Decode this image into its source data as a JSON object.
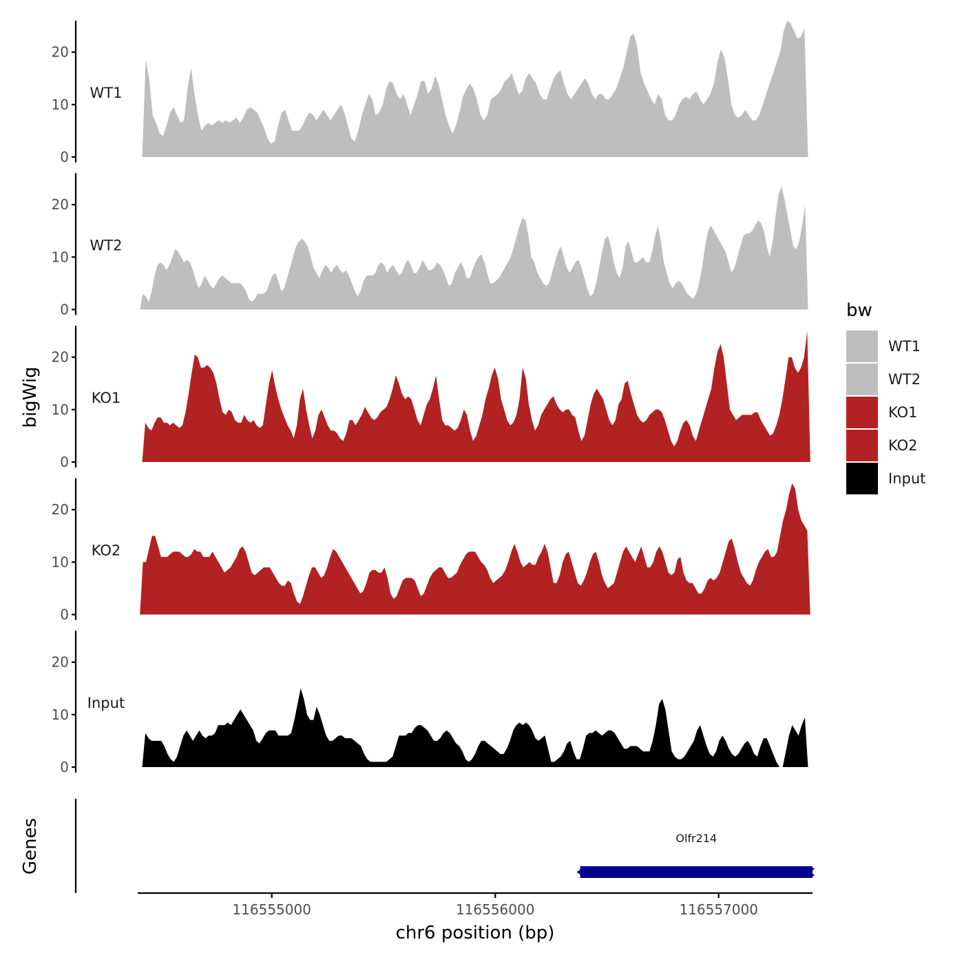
{
  "chart_data": {
    "type": "area",
    "ylabel": "bigWig",
    "xlabel": "chr6 position (bp)",
    "xlim": [
      116554400,
      116557420
    ],
    "ylim": [
      0,
      26
    ],
    "y_ticks": [
      0,
      10,
      20
    ],
    "x_ticks": [
      116555000,
      116556000,
      116557000
    ],
    "x_tick_labels": [
      "116555000",
      "116556000",
      "116557000"
    ],
    "legend": {
      "title": "bw",
      "position": "right",
      "entries": [
        {
          "label": "WT1",
          "color": "#bebebe"
        },
        {
          "label": "WT2",
          "color": "#bebebe"
        },
        {
          "label": "KO1",
          "color": "#b22222"
        },
        {
          "label": "KO2",
          "color": "#b22222"
        },
        {
          "label": "Input",
          "color": "#000000"
        }
      ]
    },
    "series": [
      {
        "name": "WT1",
        "color": "#bebebe",
        "x_start": 116554420,
        "x_end": 116557400,
        "values": [
          0,
          18.5,
          15,
          8,
          6.5,
          4.5,
          4,
          6,
          8.5,
          9.5,
          8,
          6.5,
          7,
          13,
          17,
          12,
          8,
          5,
          6,
          6.5,
          6,
          6.5,
          7,
          6.5,
          7,
          6.5,
          7,
          7.5,
          6.5,
          7.5,
          9,
          9.5,
          9,
          8.5,
          7,
          5.5,
          3.5,
          2.5,
          3,
          6,
          8.5,
          9,
          7,
          5,
          5,
          5,
          6,
          7.5,
          8.5,
          8,
          7,
          8,
          9,
          8,
          7,
          8,
          9,
          10,
          8.5,
          6,
          3.5,
          3,
          5,
          8,
          10,
          12,
          11,
          8,
          8.5,
          10,
          13,
          14.5,
          14,
          12,
          11,
          12,
          10,
          8,
          10,
          12,
          14.5,
          14.5,
          12,
          13,
          15.5,
          14,
          11,
          8,
          6,
          4.5,
          6,
          8.5,
          11.5,
          13,
          14,
          13,
          11,
          8,
          7,
          8,
          11,
          11.5,
          12,
          13,
          14.5,
          15,
          16,
          14,
          12,
          12.5,
          15,
          16,
          15,
          14,
          12,
          11,
          11,
          13,
          15,
          16,
          16.5,
          14,
          12,
          11,
          12,
          13,
          14,
          15,
          14,
          12,
          11,
          12,
          12,
          11,
          11,
          12,
          13,
          15,
          17,
          20,
          23,
          23.5,
          21,
          16,
          14,
          12.5,
          11,
          10,
          12,
          11,
          8,
          7,
          7,
          8,
          10,
          11,
          11.5,
          11,
          12,
          12.5,
          11,
          10,
          11,
          12,
          14,
          18,
          20.5,
          19,
          15,
          10,
          8,
          7.5,
          8,
          9,
          8,
          7,
          7,
          8,
          10,
          12,
          14,
          16,
          18,
          20,
          24,
          26,
          25.5,
          24,
          22.5,
          23,
          24.5,
          0
        ]
      },
      {
        "name": "WT2",
        "color": "#bebebe",
        "x_start": 116554410,
        "x_end": 116557400,
        "values": [
          0,
          3,
          2.5,
          1.5,
          3.5,
          6.5,
          8.5,
          9,
          8.5,
          7.5,
          8.5,
          10,
          11.5,
          11,
          10,
          9,
          9.5,
          9,
          7.5,
          5.5,
          4,
          5,
          6.5,
          5.5,
          4.5,
          4,
          5,
          6,
          6.5,
          6,
          5.5,
          5,
          5,
          5,
          5,
          4.5,
          3.5,
          2,
          1.5,
          2,
          3,
          3,
          3,
          3.5,
          5,
          6.5,
          7,
          5.5,
          3.5,
          4,
          6,
          8,
          10,
          12,
          13,
          13.5,
          13,
          12,
          10,
          8,
          7,
          6,
          7.5,
          8.5,
          8,
          7,
          8,
          8.5,
          7.5,
          7,
          7.5,
          6.5,
          5,
          3.5,
          2.5,
          3.5,
          5.5,
          6.5,
          6.5,
          6.5,
          7,
          8.5,
          9,
          8.5,
          7,
          8,
          8.5,
          7.5,
          6.5,
          7,
          8.5,
          9.5,
          8.5,
          7,
          7,
          8,
          9.5,
          8.5,
          7.5,
          7.5,
          8,
          9,
          8.5,
          7.5,
          6,
          4.5,
          5,
          7,
          8,
          9,
          8,
          6,
          6,
          7.5,
          9,
          10,
          10.5,
          9,
          7,
          5,
          5,
          5.5,
          6,
          7,
          8,
          9,
          10,
          12,
          14,
          16,
          17.5,
          17,
          14,
          10,
          9,
          7,
          6,
          5,
          4.5,
          5,
          7,
          9,
          11,
          12,
          10,
          8,
          7,
          8,
          9,
          9.5,
          8,
          6,
          4,
          2.5,
          3,
          5,
          8,
          11,
          13.5,
          14,
          12,
          9,
          7,
          6,
          8,
          12,
          13,
          11,
          9,
          9,
          9.5,
          10,
          9,
          9,
          11,
          14,
          16,
          13,
          9,
          7,
          5,
          4,
          5,
          5.5,
          5,
          4,
          3,
          2.5,
          2,
          3,
          5,
          8,
          12,
          15,
          16,
          15,
          14,
          13,
          12,
          11,
          9,
          7,
          8,
          10,
          12,
          14,
          14.5,
          14.5,
          15,
          16,
          17,
          16.5,
          15,
          12,
          10,
          13,
          18,
          22,
          23.5,
          21,
          18,
          15,
          12,
          11.5,
          13,
          16,
          20,
          0
        ]
      },
      {
        "name": "KO1",
        "color": "#b22222",
        "x_start": 116554420,
        "x_end": 116557410,
        "values": [
          0,
          7.5,
          6.5,
          6,
          7.5,
          8.5,
          8.5,
          7.5,
          7.5,
          7,
          7.5,
          7,
          6.5,
          7,
          9.5,
          13,
          17,
          20.5,
          20,
          18,
          18,
          18.5,
          18,
          17,
          15,
          12,
          9.5,
          9,
          10,
          9.5,
          8,
          7.5,
          7.5,
          9,
          8,
          7.5,
          8,
          7,
          6.5,
          7,
          11,
          15,
          17.5,
          14.5,
          12,
          10,
          8.5,
          7,
          6,
          4.5,
          7,
          12,
          14,
          10,
          7,
          4.5,
          6,
          9,
          10,
          8.5,
          7,
          6,
          6,
          5.5,
          4.5,
          4,
          5.5,
          8,
          8,
          7,
          8,
          9,
          10.5,
          9.5,
          8.5,
          8,
          8.5,
          9.5,
          10,
          10.5,
          12,
          14,
          16.5,
          15,
          13,
          12,
          12.5,
          12,
          10,
          8,
          7,
          9,
          11,
          12,
          14,
          16.5,
          12,
          8,
          7,
          7,
          6.5,
          6,
          6.5,
          8,
          10,
          9,
          6,
          4,
          5,
          7,
          9,
          12,
          14,
          16.5,
          18,
          16,
          12,
          10,
          8,
          7,
          7.5,
          9,
          12,
          18,
          16,
          11,
          8,
          6,
          7,
          9,
          10,
          11,
          12,
          12.5,
          11,
          10,
          9.5,
          10,
          10,
          9,
          8.5,
          6,
          4,
          5,
          8,
          11,
          13,
          14,
          13,
          12,
          10,
          8,
          7,
          8,
          11,
          12,
          15,
          15.5,
          13,
          11,
          9,
          8,
          7.5,
          8,
          9,
          9.5,
          10,
          10,
          9.5,
          8,
          6,
          4,
          3,
          4,
          6,
          7.5,
          8,
          7,
          5,
          4,
          6,
          8,
          10,
          12,
          14,
          18,
          21,
          22.5,
          20,
          15,
          10,
          9,
          8,
          8.5,
          9,
          9,
          9,
          9,
          9.5,
          9.5,
          8,
          7,
          6,
          5,
          5.5,
          7,
          9,
          12,
          16,
          20,
          20,
          18,
          17,
          18,
          20,
          25,
          0
        ]
      },
      {
        "name": "KO2",
        "color": "#b22222",
        "x_start": 116554410,
        "x_end": 116557410,
        "values": [
          0,
          10,
          10,
          12.5,
          15,
          15,
          13,
          11,
          11,
          11,
          11.5,
          12,
          12,
          12,
          11.5,
          11,
          11,
          11.5,
          12.5,
          12,
          12,
          11,
          11,
          11,
          12,
          11,
          10,
          9,
          8,
          8.5,
          9,
          10,
          11,
          12.5,
          13,
          12,
          10,
          8,
          7.5,
          8,
          8.5,
          9,
          9,
          9,
          8,
          7,
          6,
          5.5,
          5.5,
          6.5,
          6,
          4,
          2.5,
          2,
          3.5,
          5.5,
          7.5,
          9,
          9,
          8,
          7,
          7.5,
          9,
          11,
          12.5,
          12,
          11,
          10,
          9,
          8,
          7,
          6,
          5,
          4,
          4.5,
          6,
          8,
          8.5,
          8.5,
          8,
          8,
          9,
          7,
          4,
          3,
          3.5,
          5,
          6.5,
          7,
          7,
          7,
          6.5,
          5,
          3.5,
          4,
          5.5,
          7,
          8,
          8.5,
          9,
          9,
          8,
          7,
          7,
          7.5,
          8,
          9.5,
          10.5,
          11.5,
          12,
          12,
          12,
          11,
          10,
          9.5,
          8.5,
          7,
          6,
          6.5,
          7,
          7.5,
          8.5,
          10,
          12,
          13.5,
          12,
          10,
          9,
          9.5,
          10,
          9.5,
          9.5,
          11,
          12,
          13.5,
          12,
          9,
          6,
          6,
          7.5,
          10,
          11.5,
          12,
          10,
          8,
          6,
          5.5,
          6.5,
          8,
          10,
          11.5,
          12,
          10,
          7.5,
          6,
          5,
          5.5,
          6,
          8,
          10,
          12,
          13,
          12,
          11,
          10,
          11.5,
          13,
          11,
          9,
          9,
          10,
          12,
          13,
          12,
          10,
          8,
          7.5,
          8,
          10.5,
          11,
          8,
          6.5,
          6,
          6,
          5,
          4,
          4,
          5,
          6.5,
          7,
          6.5,
          7,
          8,
          10,
          12,
          14,
          14.5,
          12.5,
          10,
          8,
          7,
          6,
          5.5,
          6.5,
          8.5,
          10,
          11,
          12,
          12.5,
          11,
          11,
          12,
          15,
          18,
          20,
          23,
          25,
          24,
          20,
          18,
          17,
          16,
          0
        ]
      },
      {
        "name": "Input",
        "color": "#000000",
        "x_start": 116554420,
        "x_end": 116557400,
        "values": [
          0,
          6.5,
          5.5,
          5,
          5,
          5,
          5,
          4,
          2.5,
          1.5,
          1,
          2,
          4,
          6,
          7,
          6,
          5,
          6,
          7,
          6,
          5.5,
          6,
          6,
          6.5,
          8,
          8,
          8,
          8.5,
          8,
          9,
          10,
          11,
          10,
          9,
          8,
          7,
          5,
          4.5,
          5.5,
          6.5,
          7,
          7,
          7,
          6,
          6,
          6,
          6,
          6.5,
          9,
          12,
          15,
          13,
          10,
          9,
          9,
          11.5,
          10,
          8,
          6,
          5,
          5,
          5.5,
          6,
          6,
          5.5,
          5.5,
          5.5,
          5,
          4.5,
          4,
          2.5,
          1.5,
          1,
          1,
          1,
          1,
          1,
          1,
          1.5,
          2,
          4,
          6,
          6,
          6,
          6.5,
          6.5,
          7.5,
          8,
          8,
          7.5,
          7,
          6,
          5,
          5,
          5.5,
          6.5,
          7,
          6.5,
          5.5,
          4.5,
          4,
          3,
          1.5,
          1,
          1.5,
          2.5,
          4,
          5,
          5,
          4.5,
          4,
          3.5,
          3,
          2.5,
          2.5,
          3.5,
          5,
          7,
          8,
          8.5,
          8,
          8.5,
          8,
          7,
          5.5,
          5,
          5.5,
          6,
          3.5,
          1,
          1,
          1.5,
          2,
          3,
          4.5,
          5,
          3,
          1.5,
          1.5,
          3.5,
          6,
          6.5,
          6.5,
          7,
          6.5,
          6,
          6.5,
          7,
          7,
          6.5,
          5.5,
          4.5,
          3.5,
          3.5,
          4,
          4,
          4,
          3.5,
          3,
          3,
          3,
          5,
          8,
          12,
          13,
          11,
          7,
          3,
          2,
          1.5,
          1.5,
          2,
          3,
          4,
          5,
          7,
          8,
          6,
          4,
          2.5,
          2,
          3,
          5,
          6,
          5,
          3.5,
          2.5,
          2,
          2.5,
          3.5,
          4.5,
          5,
          4,
          2.5,
          2,
          4,
          5.5,
          5.5,
          4,
          2.5,
          1,
          0,
          0,
          3,
          6,
          8,
          7,
          6,
          8,
          9.5,
          0
        ]
      }
    ],
    "genes": {
      "ylabel": "Genes",
      "items": [
        {
          "name": "Olfr214",
          "start": 116556380,
          "end": 116557420,
          "strand": "-",
          "color": "#00008b"
        }
      ]
    }
  }
}
